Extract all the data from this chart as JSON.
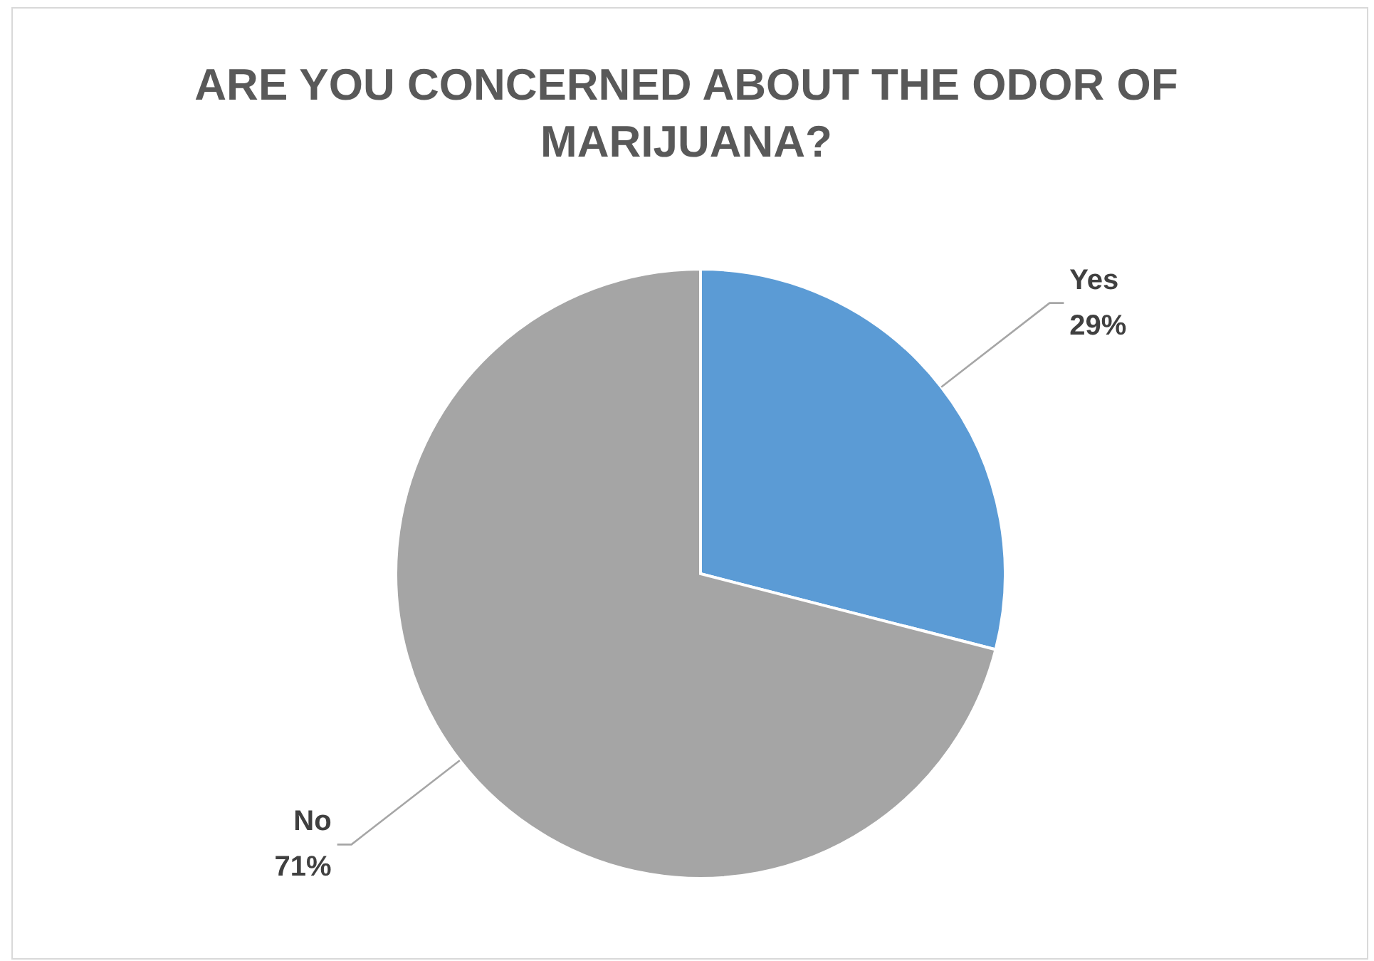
{
  "chart_data": {
    "type": "pie",
    "title": "ARE YOU CONCERNED ABOUT THE ODOR OF MARIJUANA?",
    "categories": [
      "Yes",
      "No"
    ],
    "values": [
      29,
      71
    ],
    "colors": [
      "#5b9bd5",
      "#a5a5a5"
    ],
    "value_labels": [
      "29%",
      "71%"
    ]
  }
}
